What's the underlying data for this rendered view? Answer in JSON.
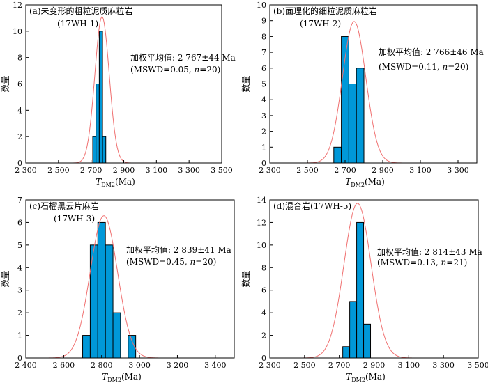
{
  "figure": {
    "y_axis_label": "数量",
    "x_axis_label_main": "T",
    "x_axis_label_sub": "DM2",
    "x_axis_label_tail": "(Ma)"
  },
  "chart_data": [
    {
      "type": "bar",
      "panel_label": "(a)未变形的粗粒泥质麻粒岩",
      "sample": "(17WH-1)",
      "stat_line1": "加权平均值: 2 767±44 Ma",
      "stat_line2_prefix": "(MSWD=0.05, ",
      "stat_line2_n": "n",
      "stat_line2_suffix": "=20)",
      "xlim": [
        2300,
        3500
      ],
      "xticks": [
        2300,
        2500,
        2700,
        2900,
        3100,
        3300,
        3500
      ],
      "xtick_labels": [
        "2 300",
        "2 500",
        "2 700",
        "2 900",
        "3 100",
        "3 300",
        "3 500"
      ],
      "ylim": [
        0,
        12
      ],
      "yticks": [
        0,
        2,
        4,
        6,
        8,
        10,
        12
      ],
      "bin_width": 20,
      "bins": [
        {
          "start": 2710,
          "count": 2
        },
        {
          "start": 2730,
          "count": 6
        },
        {
          "start": 2750,
          "count": 10
        },
        {
          "start": 2770,
          "count": 2
        }
      ],
      "curve": {
        "mean": 2767,
        "sd": 44,
        "peak": 11.1
      },
      "bar_color": "#0098d8",
      "curve_color": "#f07070"
    },
    {
      "type": "bar",
      "panel_label": "(b)面理化的细粒泥质麻粒岩",
      "sample": "(17WH-2)",
      "stat_line1": "加权平均值: 2 766±46 Ma",
      "stat_line2_prefix": "(MSWD=0.11, ",
      "stat_line2_n": "n",
      "stat_line2_suffix": "=20)",
      "xlim": [
        2300,
        3400
      ],
      "xticks": [
        2300,
        2500,
        2700,
        2900,
        3100,
        3300
      ],
      "xtick_labels": [
        "2 300",
        "2 500",
        "2 700",
        "2 900",
        "3 100",
        "3 300"
      ],
      "ylim": [
        0,
        10
      ],
      "yticks": [
        0,
        1,
        2,
        3,
        4,
        5,
        6,
        7,
        8,
        9,
        10
      ],
      "bin_width": 40,
      "bins": [
        {
          "start": 2640,
          "count": 1
        },
        {
          "start": 2680,
          "count": 8
        },
        {
          "start": 2720,
          "count": 5
        },
        {
          "start": 2760,
          "count": 6
        }
      ],
      "curve": {
        "mean": 2748,
        "sd": 62,
        "peak": 8.95
      },
      "bar_color": "#0098d8",
      "curve_color": "#f07070"
    },
    {
      "type": "bar",
      "panel_label": "(c)石榴黑云片麻岩",
      "sample": "(17WH-3)",
      "stat_line1": "加权平均值: 2 839±41 Ma",
      "stat_line2_prefix": "(MSWD=0.45, ",
      "stat_line2_n": "n",
      "stat_line2_suffix": "=20)",
      "xlim": [
        2400,
        3500
      ],
      "xticks": [
        2400,
        2600,
        2800,
        3000,
        3200,
        3400
      ],
      "xtick_labels": [
        "2 400",
        "2 600",
        "2 800",
        "3 000",
        "3 200",
        "3 400"
      ],
      "ylim": [
        0,
        7
      ],
      "yticks": [
        0,
        1,
        2,
        3,
        4,
        5,
        6,
        7
      ],
      "bin_width": 40,
      "bins": [
        {
          "start": 2700,
          "count": 1
        },
        {
          "start": 2740,
          "count": 5
        },
        {
          "start": 2780,
          "count": 6
        },
        {
          "start": 2820,
          "count": 5
        },
        {
          "start": 2860,
          "count": 2
        },
        {
          "start": 2940,
          "count": 1
        }
      ],
      "curve": {
        "mean": 2812,
        "sd": 72,
        "peak": 6.3
      },
      "bar_color": "#0098d8",
      "curve_color": "#f07070"
    },
    {
      "type": "bar",
      "panel_label": "(d)混合岩(17WH-5)",
      "sample": "",
      "stat_line1": "加权平均值: 2 814±43 Ma",
      "stat_line2_prefix": "(MSWD=0.13, ",
      "stat_line2_n": "n",
      "stat_line2_suffix": "=21)",
      "xlim": [
        2300,
        3500
      ],
      "xticks": [
        2300,
        2500,
        2700,
        2900,
        3100,
        3300,
        3500
      ],
      "xtick_labels": [
        "2 300",
        "2 500",
        "2 700",
        "2 900",
        "3 100",
        "3 300",
        "3 500"
      ],
      "ylim": [
        0,
        14
      ],
      "yticks": [
        0,
        2,
        4,
        6,
        8,
        10,
        12,
        14
      ],
      "bin_width": 40,
      "bins": [
        {
          "start": 2720,
          "count": 1
        },
        {
          "start": 2760,
          "count": 5
        },
        {
          "start": 2800,
          "count": 12
        },
        {
          "start": 2840,
          "count": 3
        }
      ],
      "curve": {
        "mean": 2805,
        "sd": 78,
        "peak": 13.7
      },
      "bar_color": "#0098d8",
      "curve_color": "#f07070"
    }
  ]
}
